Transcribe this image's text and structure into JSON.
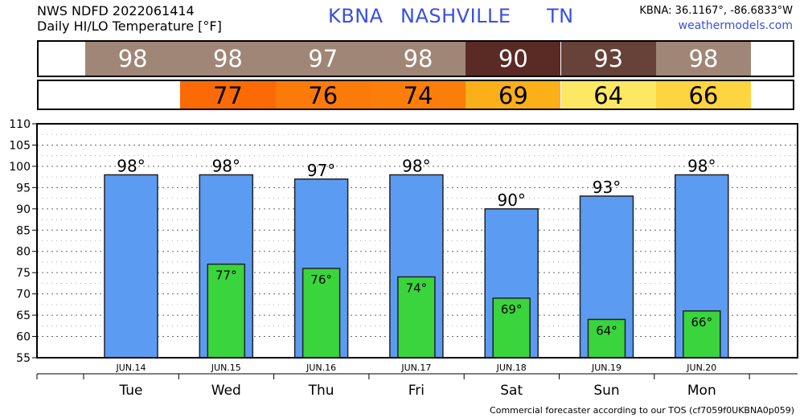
{
  "header": {
    "line1": "NWS NDFD 2022061414",
    "line2": "Daily HI/LO Temperature [°F]",
    "station": "KBNA",
    "city": "NASHVILLE",
    "state": "TN",
    "coords": "KBNA: 36.1167°, -86.6833°W",
    "site": "weathermodels.com"
  },
  "hi_strip": [
    {
      "value": "98",
      "color": "#a08676",
      "text_color": "#ffffff"
    },
    {
      "value": "98",
      "color": "#a08676",
      "text_color": "#ffffff"
    },
    {
      "value": "97",
      "color": "#a08676",
      "text_color": "#ffffff"
    },
    {
      "value": "98",
      "color": "#a08676",
      "text_color": "#ffffff"
    },
    {
      "value": "90",
      "color": "#5a2a24",
      "text_color": "#ffffff"
    },
    {
      "value": "93",
      "color": "#674238",
      "text_color": "#ffffff"
    },
    {
      "value": "98",
      "color": "#a08676",
      "text_color": "#ffffff"
    }
  ],
  "lo_strip": [
    {
      "value": "77",
      "color": "#fb6a05",
      "text_color": "#000000"
    },
    {
      "value": "76",
      "color": "#fb7a0a",
      "text_color": "#000000"
    },
    {
      "value": "74",
      "color": "#fb7e0b",
      "text_color": "#000000"
    },
    {
      "value": "69",
      "color": "#fbb01a",
      "text_color": "#000000"
    },
    {
      "value": "64",
      "color": "#fde865",
      "text_color": "#000000"
    },
    {
      "value": "66",
      "color": "#fed440",
      "text_color": "#000000"
    }
  ],
  "chart_data": {
    "type": "bar",
    "categories": [
      "Tue",
      "Wed",
      "Thu",
      "Fri",
      "Sat",
      "Sun",
      "Mon"
    ],
    "dates": [
      "JUN.14",
      "JUN.15",
      "JUN.16",
      "JUN.17",
      "JUN.18",
      "JUN.19",
      "JUN.20"
    ],
    "series": [
      {
        "values": [
          98,
          98,
          97,
          98,
          90,
          93,
          98
        ],
        "labels": [
          "98°",
          "98°",
          "97°",
          "98°",
          "90°",
          "93°",
          "98°"
        ],
        "color": "#5b9cf2"
      },
      {
        "values": [
          null,
          77,
          76,
          74,
          69,
          64,
          66
        ],
        "labels": [
          "",
          "77°",
          "76°",
          "74°",
          "69°",
          "64°",
          "66°"
        ],
        "color": "#3ad43c"
      }
    ],
    "ylim": [
      55,
      110
    ],
    "yticks": [
      55,
      60,
      65,
      70,
      75,
      80,
      85,
      90,
      95,
      100,
      105,
      110
    ],
    "grid": true
  },
  "footer": "Commercial forecaster according to our TOS (cf7059f0UKBNA0p059)"
}
